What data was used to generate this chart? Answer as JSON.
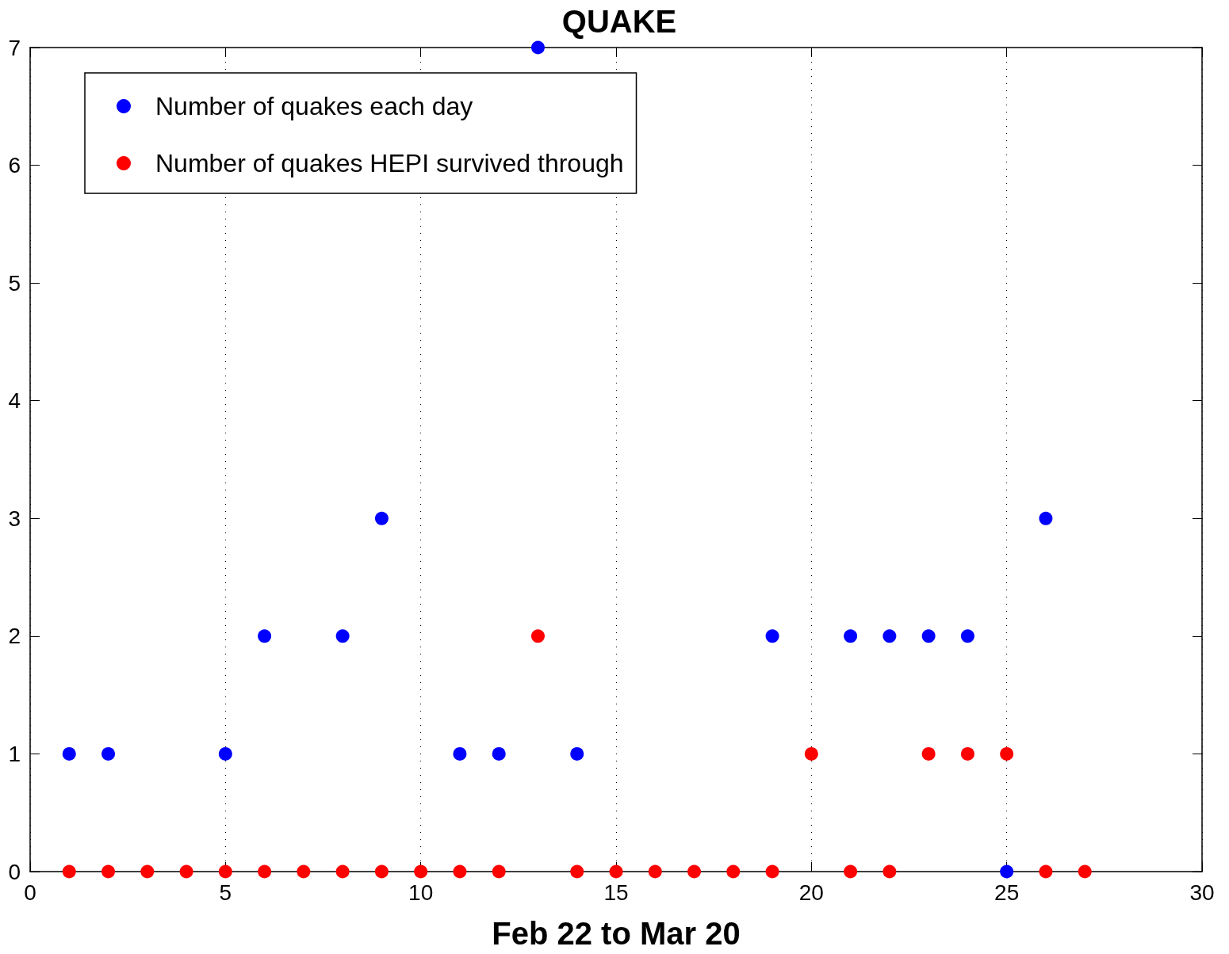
{
  "chart_data": {
    "type": "scatter",
    "title": "QUAKE",
    "xlabel": "Feb 22 to Mar 20",
    "x": [
      1,
      2,
      3,
      4,
      5,
      6,
      7,
      8,
      9,
      10,
      11,
      12,
      13,
      14,
      15,
      16,
      17,
      18,
      19,
      20,
      21,
      22,
      23,
      24,
      25,
      26,
      27
    ],
    "series": [
      {
        "name": "Number of quakes each day",
        "color": "#0000ff",
        "values": [
          1,
          1,
          null,
          null,
          1,
          2,
          null,
          2,
          3,
          null,
          1,
          1,
          7,
          1,
          null,
          null,
          null,
          null,
          2,
          null,
          2,
          2,
          2,
          2,
          0,
          3,
          null
        ]
      },
      {
        "name": "Number of quakes HEPI survived through",
        "color": "#ff0000",
        "values": [
          0,
          0,
          0,
          0,
          0,
          0,
          0,
          0,
          0,
          0,
          0,
          0,
          2,
          0,
          0,
          0,
          0,
          0,
          0,
          1,
          0,
          0,
          1,
          1,
          1,
          0,
          0
        ]
      }
    ],
    "xlim": [
      0,
      30
    ],
    "xticks": [
      0,
      5,
      10,
      15,
      20,
      25,
      30
    ],
    "ylim": [
      0,
      7
    ],
    "yticks": [
      0,
      1,
      2,
      3,
      4,
      5,
      6,
      7
    ],
    "grid": "x",
    "legend": "top left",
    "marker": "circle"
  }
}
